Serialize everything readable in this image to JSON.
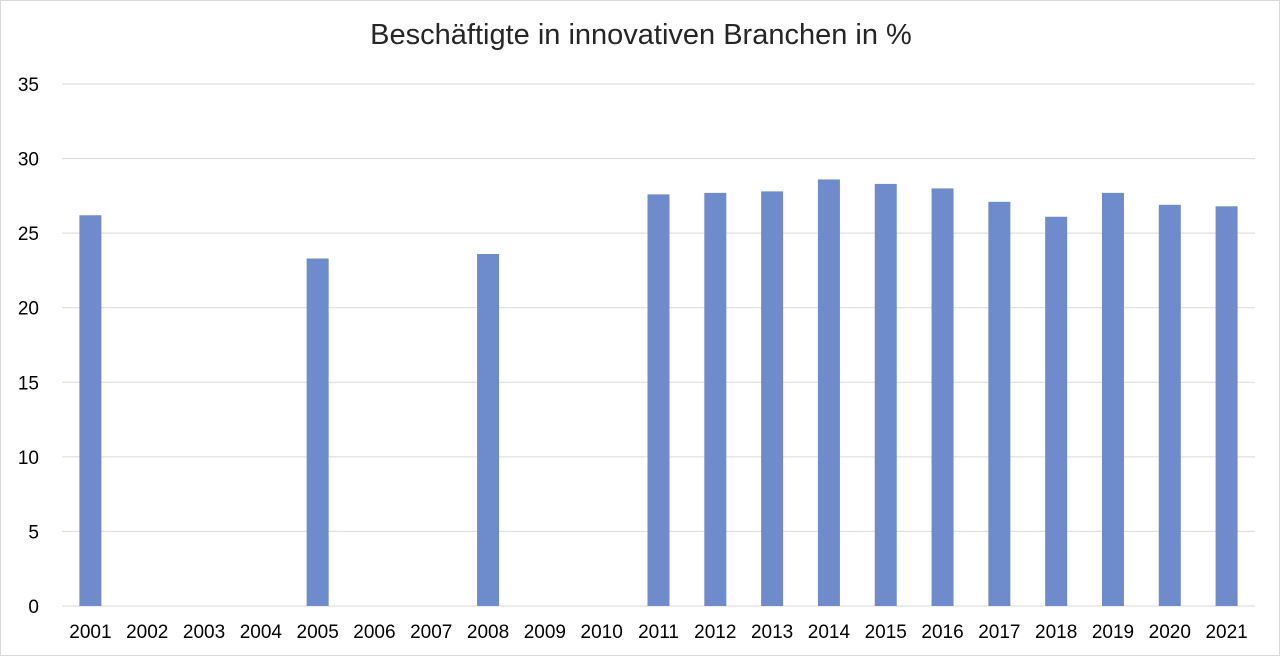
{
  "chart_data": {
    "type": "bar",
    "title": "Beschäftigte in innovativen Branchen in %",
    "xlabel": "",
    "ylabel": "",
    "categories": [
      "2001",
      "2002",
      "2003",
      "2004",
      "2005",
      "2006",
      "2007",
      "2008",
      "2009",
      "2010",
      "2011",
      "2012",
      "2013",
      "2014",
      "2015",
      "2016",
      "2017",
      "2018",
      "2019",
      "2020",
      "2021"
    ],
    "series": [
      {
        "values": [
          26.2,
          null,
          null,
          null,
          23.3,
          null,
          null,
          23.6,
          null,
          null,
          27.6,
          27.7,
          27.8,
          28.6,
          28.3,
          28.0,
          27.1,
          26.1,
          27.7,
          26.9,
          26.8
        ]
      }
    ],
    "ylim": [
      0,
      35
    ],
    "yticks": [
      0,
      5,
      10,
      15,
      20,
      25,
      30,
      35
    ],
    "grid": true,
    "legend": "none",
    "bar_color": "#6e8ccc",
    "grid_color": "#d9d9d9"
  }
}
